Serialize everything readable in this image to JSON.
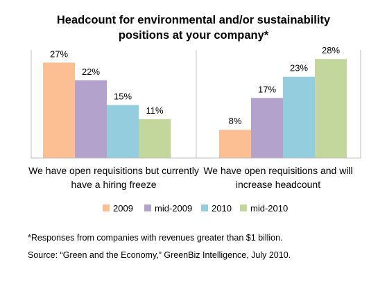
{
  "chart_data": {
    "type": "bar",
    "title": "Headcount for environmental and/or sustainability positions at your company*",
    "title_lines": [
      "Headcount for environmental and/or sustainability",
      "positions at your company*"
    ],
    "categories": [
      "We have open requisitions but currently have a hiring freeze",
      "We have open requisitions and will increase headcount"
    ],
    "category_lines": [
      [
        "We have open requisitions but currently",
        "have a hiring freeze"
      ],
      [
        "We have open requisitions and will",
        "increase headcount"
      ]
    ],
    "series": [
      {
        "name": "2009",
        "color": "#FBBF93",
        "values": [
          27,
          8
        ],
        "labels": [
          "27%",
          "8%"
        ]
      },
      {
        "name": "mid-2009",
        "color": "#B3A2CB",
        "values": [
          22,
          17
        ],
        "labels": [
          "22%",
          "17%"
        ]
      },
      {
        "name": "2010",
        "color": "#93CDDE",
        "values": [
          15,
          23
        ],
        "labels": [
          "15%",
          "23%"
        ]
      },
      {
        "name": "mid-2010",
        "color": "#C3D69B",
        "values": [
          11,
          28
        ],
        "labels": [
          "11%",
          "28%"
        ]
      }
    ],
    "ylim": [
      0,
      30
    ],
    "grid": false,
    "legend_position": "bottom",
    "xlabel": "",
    "ylabel": ""
  },
  "footnote": "*Responses from companies with revenues greater than $1 billion.",
  "source": "Source: “Green and the Economy,” GreenBiz Intelligence, July 2010."
}
